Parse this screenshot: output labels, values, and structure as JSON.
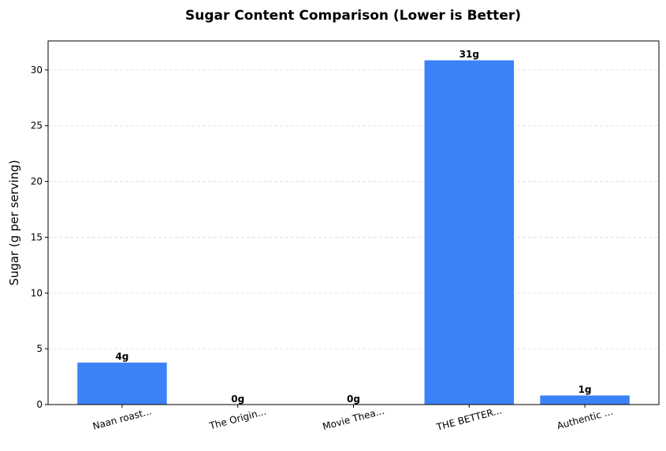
{
  "chart_data": {
    "type": "bar",
    "title": "Sugar Content Comparison (Lower is Better)",
    "xlabel": "",
    "ylabel": "Sugar (g per serving)",
    "categories": [
      "Naan roast...",
      "The Origin...",
      "Movie Thea...",
      "THE BETTER...",
      "Authentic ..."
    ],
    "values": [
      3.8,
      0,
      0,
      30.9,
      0.85
    ],
    "data_labels": [
      "4g",
      "0g",
      "0g",
      "31g",
      "1g"
    ],
    "ylim": [
      0,
      32.6
    ],
    "yticks": [
      0,
      5,
      10,
      15,
      20,
      25,
      30
    ],
    "grid": "y-dashed",
    "bar_color": "#3b82f6"
  }
}
